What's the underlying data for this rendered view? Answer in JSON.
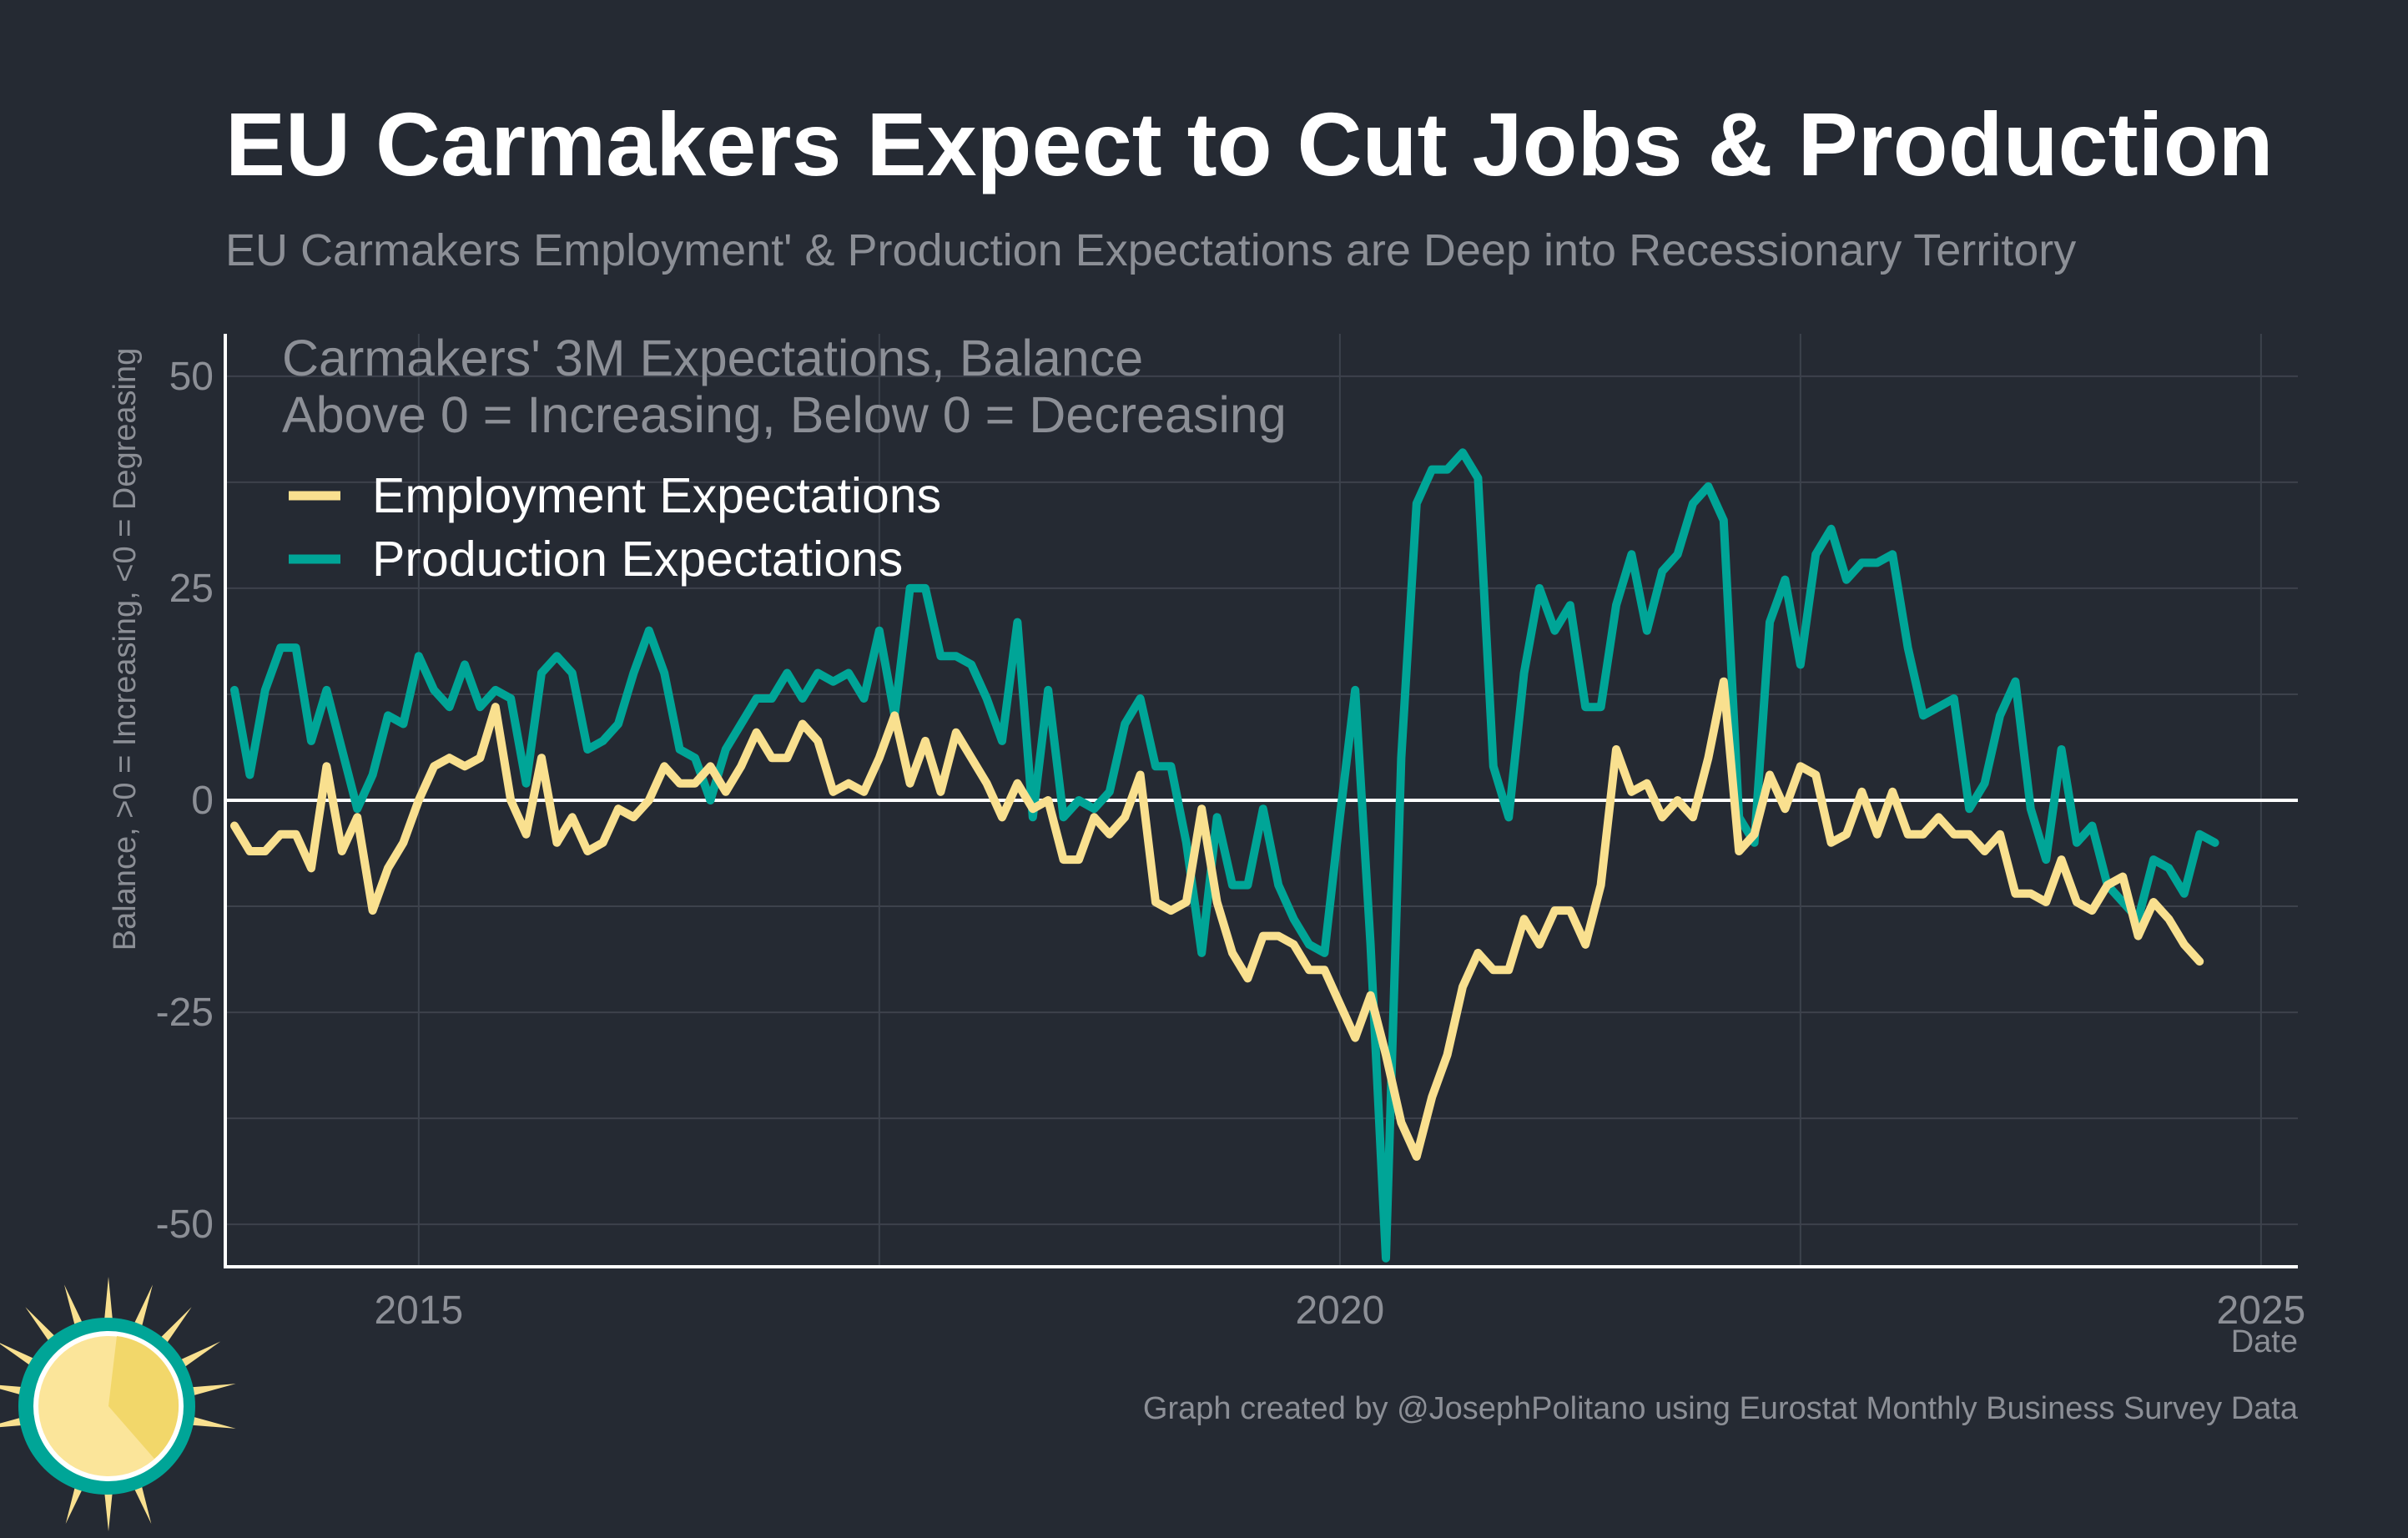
{
  "colors": {
    "background": "#252a33",
    "employment": "#f9e08f",
    "production": "#00a597",
    "zero_line": "#ffffff",
    "grid": "#3d424c",
    "muted_text": "#8c8f96"
  },
  "header": {
    "title": "EU Carmakers Expect to Cut Jobs & Production",
    "subtitle": "EU Carmakers Employment' & Production Expectations are Deep into Recessionary Territory"
  },
  "footer": {
    "caption": "Graph created by @JosephPolitano using Eurostat Monthly Business Survey Data",
    "logo_icon": "sun-logo-icon"
  },
  "chart_data": {
    "type": "line",
    "inset_line1": "Carmakers' 3M Expectations, Balance",
    "inset_line2": "Above 0 = Increasing, Below 0 = Decreasing",
    "xlabel": "Date",
    "ylabel": "Balance, >0 = Increasing, <0 = Degreasing",
    "xlim": [
      2013.95,
      2025.2
    ],
    "ylim": [
      -55,
      55
    ],
    "x_ticks": [
      2015,
      2020,
      2025
    ],
    "x_tick_labels": [
      "2015",
      "2020",
      "2025"
    ],
    "y_ticks": [
      50,
      25,
      0,
      -25,
      -50
    ],
    "y_tick_labels": [
      "50",
      "25",
      "0",
      "-25",
      "-50"
    ],
    "grid": true,
    "legend_position": "top-left",
    "x_start": "2014-01",
    "x_step": "monthly",
    "series": [
      {
        "name": "Employment Expectations",
        "color": "#f9e08f",
        "values": [
          -3,
          -6,
          -6,
          -4,
          -4,
          -8,
          4,
          -6,
          -2,
          -13,
          -8,
          -5,
          0,
          4,
          5,
          4,
          5,
          11,
          0,
          -4,
          5,
          -5,
          -2,
          -6,
          -5,
          -1,
          -2,
          0,
          4,
          2,
          2,
          4,
          1,
          4,
          8,
          5,
          5,
          9,
          7,
          1,
          2,
          1,
          5,
          10,
          2,
          7,
          1,
          8,
          5,
          2,
          -2,
          2,
          -1,
          0,
          -7,
          -7,
          -2,
          -4,
          -2,
          3,
          -12,
          -13,
          -12,
          -1,
          -12,
          -18,
          -21,
          -16,
          -16,
          -17,
          -20,
          -20,
          -24,
          -28,
          -23,
          -30,
          -38,
          -42,
          -35,
          -30,
          -22,
          -18,
          -20,
          -20,
          -14,
          -17,
          -13,
          -13,
          -17,
          -10,
          6,
          1,
          2,
          -2,
          0,
          -2,
          5,
          14,
          -6,
          -4,
          3,
          -1,
          4,
          3,
          -5,
          -4,
          1,
          -4,
          1,
          -4,
          -4,
          -2,
          -4,
          -4,
          -6,
          -4,
          -11,
          -11,
          -12,
          -7,
          -12,
          -13,
          -10,
          -9,
          -16,
          -12,
          -14,
          -17,
          -19
        ]
      },
      {
        "name": "Production Expectations",
        "color": "#00a597",
        "values": [
          13,
          3,
          13,
          18,
          18,
          7,
          13,
          6,
          -1,
          3,
          10,
          9,
          17,
          13,
          11,
          16,
          11,
          13,
          12,
          2,
          15,
          17,
          15,
          6,
          7,
          9,
          15,
          20,
          15,
          6,
          5,
          0,
          6,
          9,
          12,
          12,
          15,
          12,
          15,
          14,
          15,
          12,
          20,
          10,
          25,
          25,
          17,
          17,
          16,
          12,
          7,
          21,
          -2,
          13,
          -2,
          0,
          -1,
          1,
          9,
          12,
          4,
          4,
          -5,
          -18,
          -2,
          -10,
          -10,
          -1,
          -10,
          -14,
          -17,
          -18,
          -2,
          13,
          -17,
          -54,
          5,
          35,
          39,
          39,
          41,
          38,
          4,
          -2,
          15,
          25,
          20,
          23,
          11,
          11,
          23,
          29,
          20,
          27,
          29,
          35,
          37,
          33,
          -2,
          -5,
          21,
          26,
          16,
          29,
          32,
          26,
          28,
          28,
          29,
          18,
          10,
          11,
          12,
          -1,
          2,
          10,
          14,
          -1,
          -7,
          6,
          -5,
          -3,
          -10,
          -12,
          -14,
          -7,
          -8,
          -11,
          -4,
          -5
        ]
      }
    ]
  }
}
